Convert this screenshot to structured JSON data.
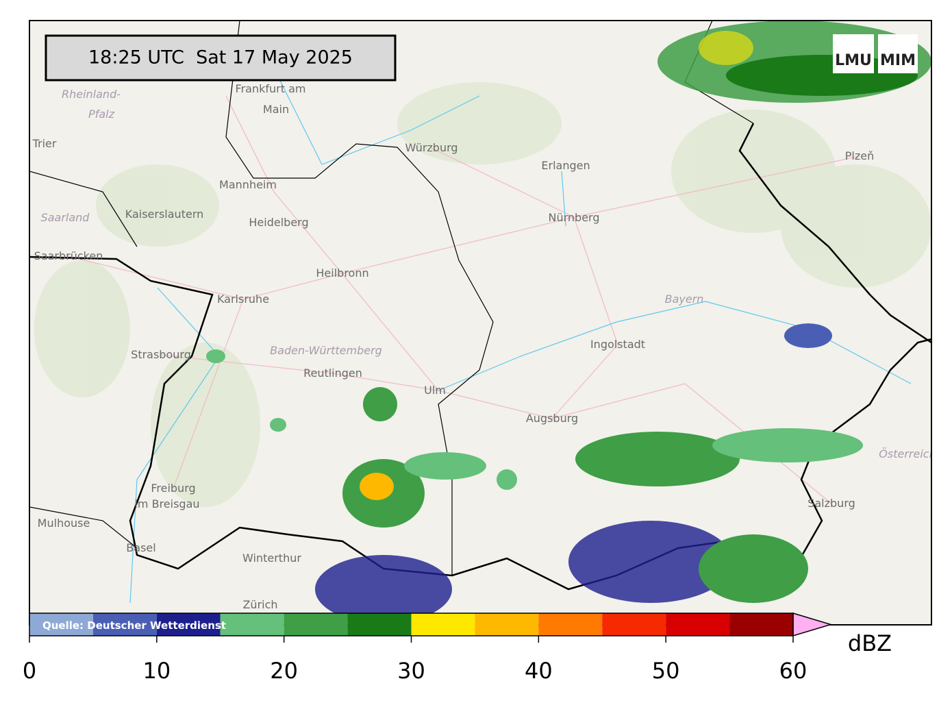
{
  "header": {
    "timestamp": "18:25 UTC  Sat 17 May 2025"
  },
  "logos": [
    "LMU",
    "MIM"
  ],
  "map": {
    "places": [
      "Frankfurt am",
      "Main",
      "Rheinland-",
      "Pfalz",
      "Trier",
      "Würzburg",
      "Erlangen",
      "Plzeň",
      "Mannheim",
      "Kaiserslautern",
      "Saarland",
      "Heidelberg",
      "Nürnberg",
      "Saarbrücken",
      "Heilbronn",
      "Karlsruhe",
      "Bayern",
      "Ingolstadt",
      "Strasbourg",
      "Baden-Württemberg",
      "Reutlingen",
      "Ulm",
      "Augsburg",
      "Freiburg",
      "im Breisgau",
      "Mulhouse",
      "Basel",
      "Winterthur",
      "Zürich",
      "Salzburg",
      "Österreich"
    ]
  },
  "colorbar": {
    "bounds": [
      0,
      5,
      10,
      15,
      20,
      25,
      30,
      35,
      40,
      45,
      50,
      55,
      60
    ],
    "colors": [
      "#8fa9d6",
      "#4a5fb4",
      "#1d1f8e",
      "#64c07a",
      "#3f9e46",
      "#1a7a18",
      "#ffe800",
      "#ffb800",
      "#ff7a00",
      "#f52a00",
      "#d80000",
      "#9b0000"
    ],
    "extend_color": "#ffb0f0",
    "ticks": [
      0,
      10,
      20,
      30,
      40,
      50,
      60
    ],
    "unit": "dBZ",
    "source": "Quelle: Deutscher Wetterdienst"
  }
}
